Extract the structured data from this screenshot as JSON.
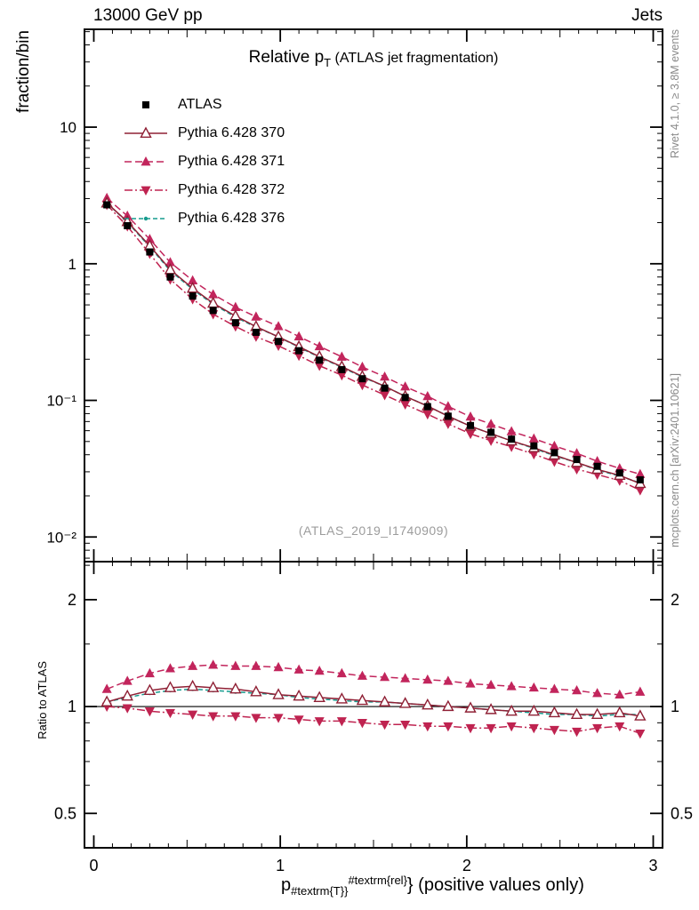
{
  "header": {
    "left": "13000 GeV pp",
    "right": "Jets"
  },
  "title": {
    "pre": "Relative p",
    "sub": "T",
    "post": " (ATLAS jet fragmentation)"
  },
  "watermark": "(ATLAS_2019_I1740909)",
  "side_notes": {
    "top_right": "Rivet 4.1.0, ≥ 3.8M events",
    "bottom_right": "mcplots.cern.ch [arXiv:2401.10621]"
  },
  "axis_labels": {
    "y_main": "fraction/bin",
    "y_ratio": "Ratio to ATLAS",
    "x": {
      "base": "p",
      "sub": "#textrm{T}}",
      "sup": "#textrm{rel}",
      "tail": "} (positive values only)"
    }
  },
  "chart_data": {
    "type": "line",
    "title": "Relative pT (ATLAS jet fragmentation)",
    "xlabel": "p_T^rel (positive values only)",
    "ylabel_main": "fraction/bin",
    "ylabel_ratio": "Ratio to ATLAS",
    "grid": false,
    "legend_position": "top-left",
    "axes": {
      "x": {
        "min": -0.05,
        "max": 3.05,
        "major": [
          0,
          1,
          2,
          3
        ],
        "labels": [
          "0",
          "1",
          "2",
          "3"
        ],
        "minor_step": 0.1
      },
      "y_main": {
        "scale": "log",
        "min": 0.0066,
        "max": 52,
        "major": [
          0.01,
          0.1,
          1,
          10
        ],
        "labels": [
          "10⁻²",
          "10⁻¹",
          "1",
          "10"
        ]
      },
      "y_ratio": {
        "scale": "log",
        "min": 0.4,
        "max": 2.56,
        "major": [
          0.5,
          1,
          2
        ],
        "labels": [
          "0.5",
          "1",
          "2"
        ],
        "minor": [
          0.6,
          0.7,
          0.8,
          0.9,
          1.5,
          2.5
        ]
      }
    },
    "x": [
      0.07,
      0.18,
      0.3,
      0.41,
      0.53,
      0.64,
      0.76,
      0.87,
      0.99,
      1.1,
      1.21,
      1.33,
      1.44,
      1.56,
      1.67,
      1.79,
      1.9,
      2.02,
      2.13,
      2.24,
      2.36,
      2.47,
      2.59,
      2.7,
      2.82,
      2.93
    ],
    "series": [
      {
        "name": "ATLAS",
        "role": "data",
        "color": "#000000",
        "marker": "square",
        "line": "none",
        "values": [
          2.7,
          1.9,
          1.22,
          0.8,
          0.58,
          0.455,
          0.37,
          0.315,
          0.27,
          0.231,
          0.197,
          0.168,
          0.144,
          0.123,
          0.105,
          0.09,
          0.0766,
          0.0654,
          0.0583,
          0.052,
          0.0464,
          0.0414,
          0.0369,
          0.0329,
          0.0294,
          0.0262
        ]
      },
      {
        "name": "Pythia 6.428 370",
        "role": "mc",
        "color": "#8f2035",
        "marker": "triangle-open",
        "line": "solid",
        "ratio_to_data": [
          1.03,
          1.07,
          1.11,
          1.13,
          1.14,
          1.13,
          1.12,
          1.1,
          1.08,
          1.07,
          1.06,
          1.05,
          1.04,
          1.03,
          1.02,
          1.01,
          1.0,
          0.99,
          0.98,
          0.97,
          0.97,
          0.96,
          0.95,
          0.95,
          0.96,
          0.94
        ]
      },
      {
        "name": "Pythia 6.428 371",
        "role": "mc",
        "color": "#c2255c",
        "marker": "triangle-up",
        "line": "dashed",
        "ratio_to_data": [
          1.12,
          1.18,
          1.24,
          1.28,
          1.3,
          1.31,
          1.3,
          1.3,
          1.29,
          1.27,
          1.26,
          1.24,
          1.22,
          1.21,
          1.2,
          1.19,
          1.18,
          1.16,
          1.15,
          1.14,
          1.13,
          1.12,
          1.11,
          1.09,
          1.08,
          1.1
        ]
      },
      {
        "name": "Pythia 6.428 372",
        "role": "mc",
        "color": "#bf2350",
        "marker": "triangle-down",
        "line": "dashdot",
        "ratio_to_data": [
          1.0,
          0.99,
          0.97,
          0.96,
          0.95,
          0.94,
          0.94,
          0.93,
          0.93,
          0.92,
          0.91,
          0.91,
          0.9,
          0.89,
          0.89,
          0.88,
          0.88,
          0.87,
          0.87,
          0.88,
          0.87,
          0.86,
          0.85,
          0.87,
          0.88,
          0.84
        ]
      },
      {
        "name": "Pythia 6.428 376",
        "role": "mc",
        "color": "#169b8e",
        "marker": "dot",
        "line": "dashed-fine",
        "ratio_to_data": [
          1.03,
          1.06,
          1.09,
          1.11,
          1.12,
          1.11,
          1.1,
          1.09,
          1.08,
          1.06,
          1.05,
          1.04,
          1.03,
          1.03,
          1.02,
          1.01,
          1.0,
          0.99,
          0.98,
          0.97,
          0.96,
          0.95,
          0.95,
          0.94,
          0.95,
          0.95
        ]
      }
    ]
  }
}
